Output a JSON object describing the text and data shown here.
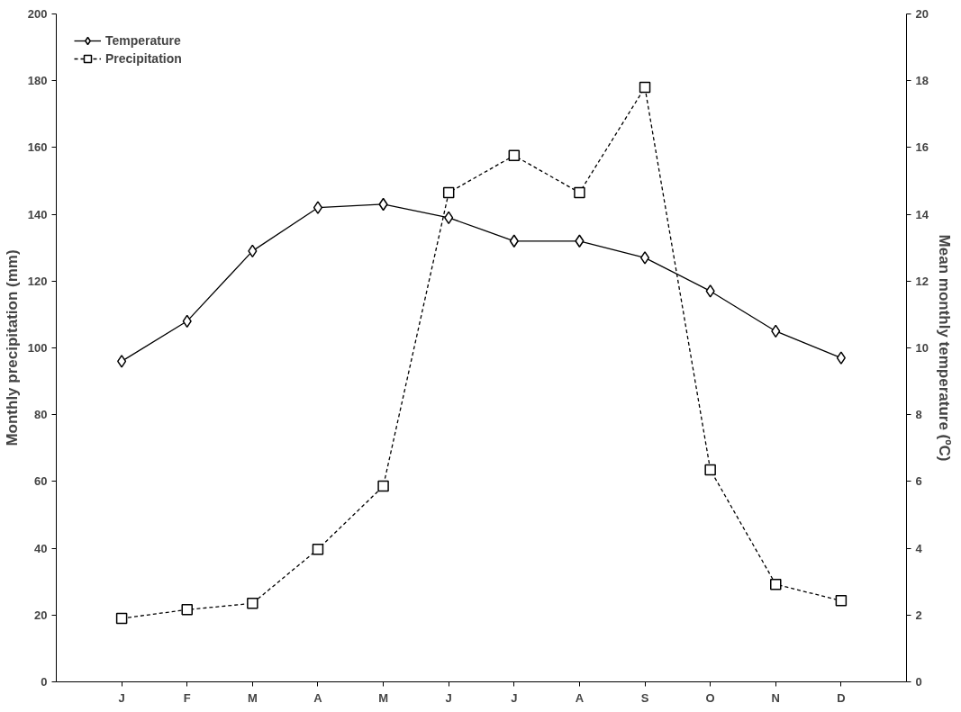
{
  "chart_data": {
    "type": "line",
    "categories": [
      "J",
      "F",
      "M",
      "A",
      "M",
      "J",
      "J",
      "A",
      "S",
      "O",
      "N",
      "D"
    ],
    "ylabel": "Monthly precipitation (mm)",
    "y2label": "Mean monthly temperature (ºC)",
    "ylim": [
      0,
      200
    ],
    "yticks": [
      0,
      20,
      40,
      60,
      80,
      100,
      120,
      140,
      160,
      180,
      200
    ],
    "y2lim": [
      0,
      20
    ],
    "y2ticks": [
      0,
      2,
      4,
      6,
      8,
      10,
      12,
      14,
      16,
      18,
      20
    ],
    "grid": false,
    "legend": "top left",
    "series": [
      {
        "name": "Temperature",
        "color": "#000000",
        "axis": "y2",
        "marker": "diamond",
        "line_style": "solid",
        "values": [
          9.6,
          10.8,
          12.9,
          14.2,
          14.3,
          13.9,
          13.2,
          13.2,
          12.7,
          11.7,
          10.5,
          9.7
        ]
      },
      {
        "name": "Precipitation",
        "color": "#000000",
        "axis": "y",
        "marker": "square",
        "line_style": "dashed",
        "values": [
          19,
          21.6,
          23.5,
          39.7,
          58.6,
          146.5,
          157.6,
          146.5,
          178,
          63.5,
          29.2,
          24.3
        ]
      }
    ]
  }
}
